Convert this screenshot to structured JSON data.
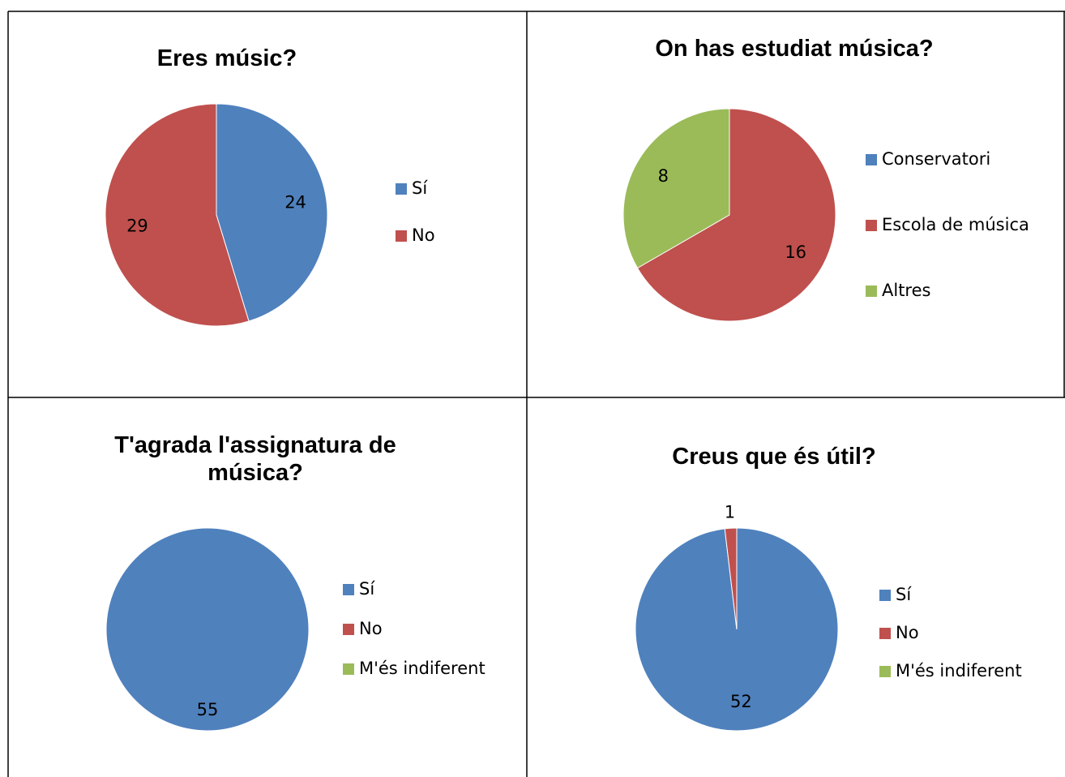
{
  "chart_data": [
    {
      "type": "pie",
      "title": "Eres músic?",
      "categories": [
        "Sí",
        "No"
      ],
      "values": [
        24,
        29
      ],
      "colors": [
        "#4f81bd",
        "#c0504d"
      ],
      "legend": "right"
    },
    {
      "type": "pie",
      "title": "On has estudiat música?",
      "categories": [
        "Conservatori",
        "Escola de música",
        "Altres"
      ],
      "values": [
        0,
        16,
        8
      ],
      "colors": [
        "#4f81bd",
        "#c0504d",
        "#9bbb59"
      ],
      "legend": "right"
    },
    {
      "type": "pie",
      "title": "T'agrada l'assignatura de música?",
      "categories": [
        "Sí",
        "No",
        "M'és indiferent"
      ],
      "values": [
        55,
        0,
        0
      ],
      "colors": [
        "#4f81bd",
        "#c0504d",
        "#9bbb59"
      ],
      "legend": "right"
    },
    {
      "type": "pie",
      "title": "Creus que és útil?",
      "categories": [
        "Sí",
        "No",
        "M'és indiferent"
      ],
      "values": [
        52,
        1,
        0
      ],
      "colors": [
        "#4f81bd",
        "#c0504d",
        "#9bbb59"
      ],
      "legend": "right"
    }
  ]
}
